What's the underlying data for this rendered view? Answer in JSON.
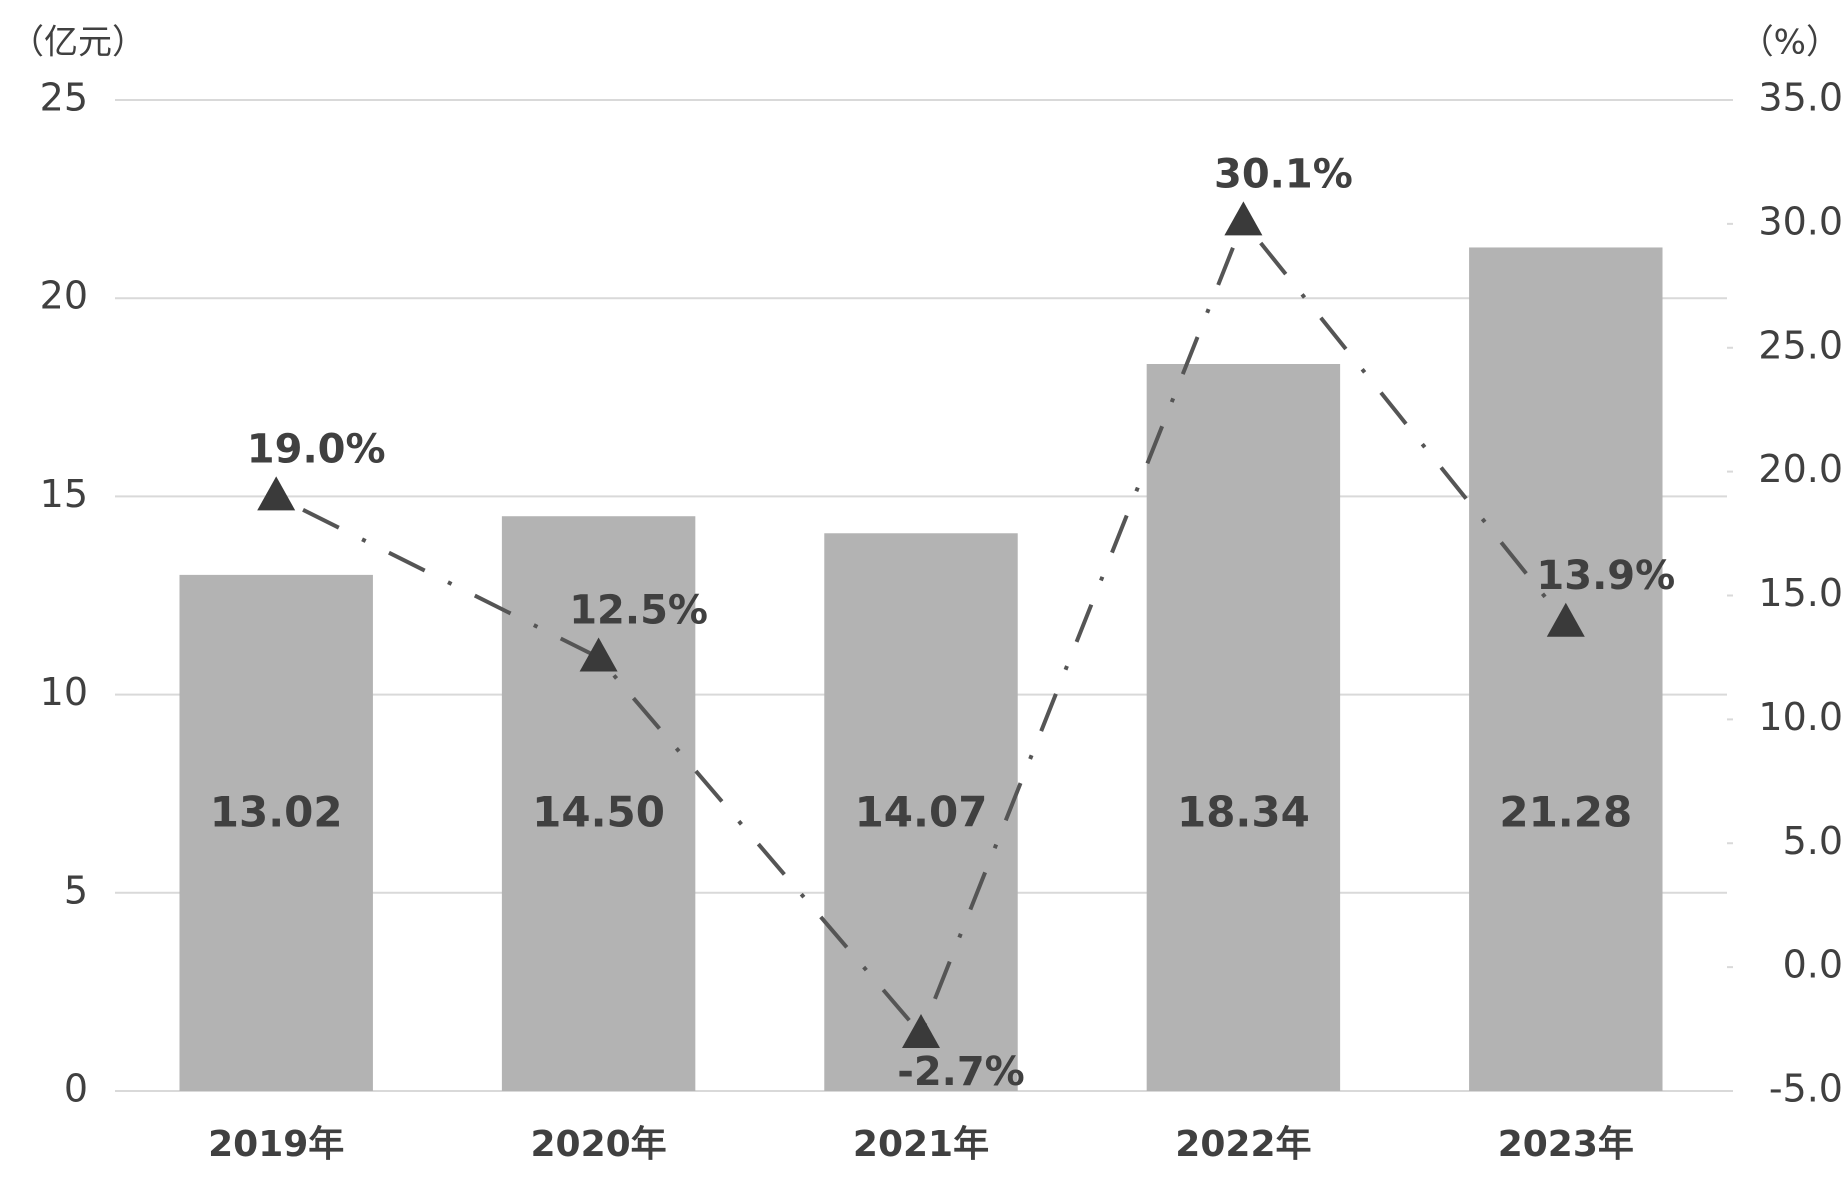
{
  "chart_data": {
    "type": "combo",
    "y_unit": "（亿元）",
    "y2_unit": "（%）",
    "categories": [
      "2019年",
      "2020年",
      "2021年",
      "2022年",
      "2023年"
    ],
    "series": [
      {
        "type": "bar",
        "color": "#b3b3b3",
        "values": [
          13.02,
          14.5,
          14.07,
          18.34,
          21.28
        ],
        "value_labels": [
          "13.02",
          "14.50",
          "14.07",
          "18.34",
          "21.28"
        ]
      },
      {
        "type": "line",
        "axis": "y2",
        "color": "#555555",
        "values": [
          19.0,
          12.5,
          -2.7,
          30.1,
          13.9
        ],
        "value_labels": [
          "19.0%",
          "12.5%",
          "-2.7%",
          "30.1%",
          "13.9%"
        ]
      }
    ],
    "ylim": [
      0,
      25
    ],
    "yticks": [
      0,
      5,
      10,
      15,
      20,
      25
    ],
    "y2lim": [
      -5,
      35
    ],
    "y2ticks": [
      {
        "value": -5,
        "label": "-5.0"
      },
      {
        "value": 0,
        "label": "0.0"
      },
      {
        "value": 5,
        "label": "5.0"
      },
      {
        "value": 10,
        "label": "10.0"
      },
      {
        "value": 15,
        "label": "15.0"
      },
      {
        "value": 20,
        "label": "20.0"
      },
      {
        "value": 25,
        "label": "25.0"
      },
      {
        "value": 30,
        "label": "30.0"
      },
      {
        "value": 35,
        "label": "35.0"
      }
    ],
    "grid": true
  }
}
